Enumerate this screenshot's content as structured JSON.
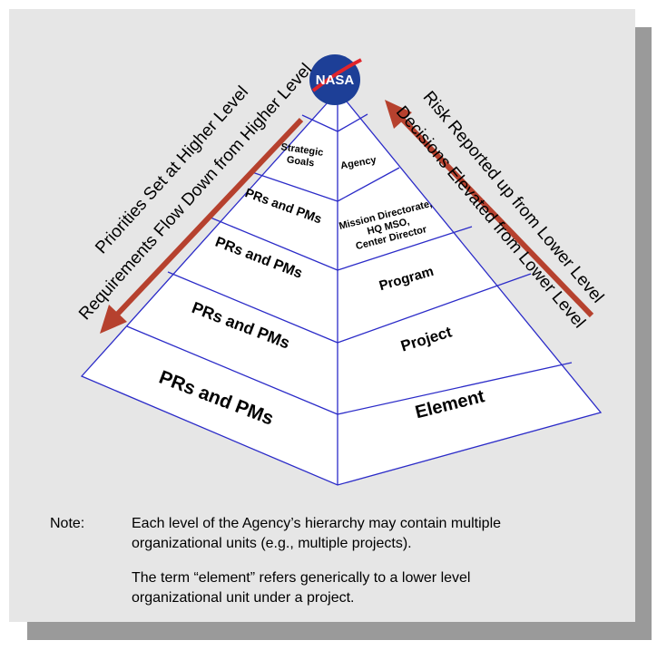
{
  "logo": "NASA",
  "arrows": {
    "left": [
      "Priorities Set at Higher Level",
      "Requirements Flow Down from Higher Level"
    ],
    "right": [
      "Risk Reported up from Lower Level",
      "Decisions Elevated from Lower Level"
    ]
  },
  "pyramid": {
    "left": [
      "Strategic Goals",
      "PRs and PMs",
      "PRs and PMs",
      "PRs and PMs",
      "PRs and PMs"
    ],
    "right": [
      "Agency",
      "Mission Directorate, HQ MSO, Center Director",
      "Program",
      "Project",
      "Element"
    ]
  },
  "note": {
    "label": "Note:",
    "paragraphs": [
      [
        "Each level of the Agency’s hierarchy may contain multiple",
        "organizational units (e.g., multiple projects)."
      ],
      [
        "The term “element” refers generically to a lower level",
        "organizational unit under a project."
      ]
    ]
  }
}
